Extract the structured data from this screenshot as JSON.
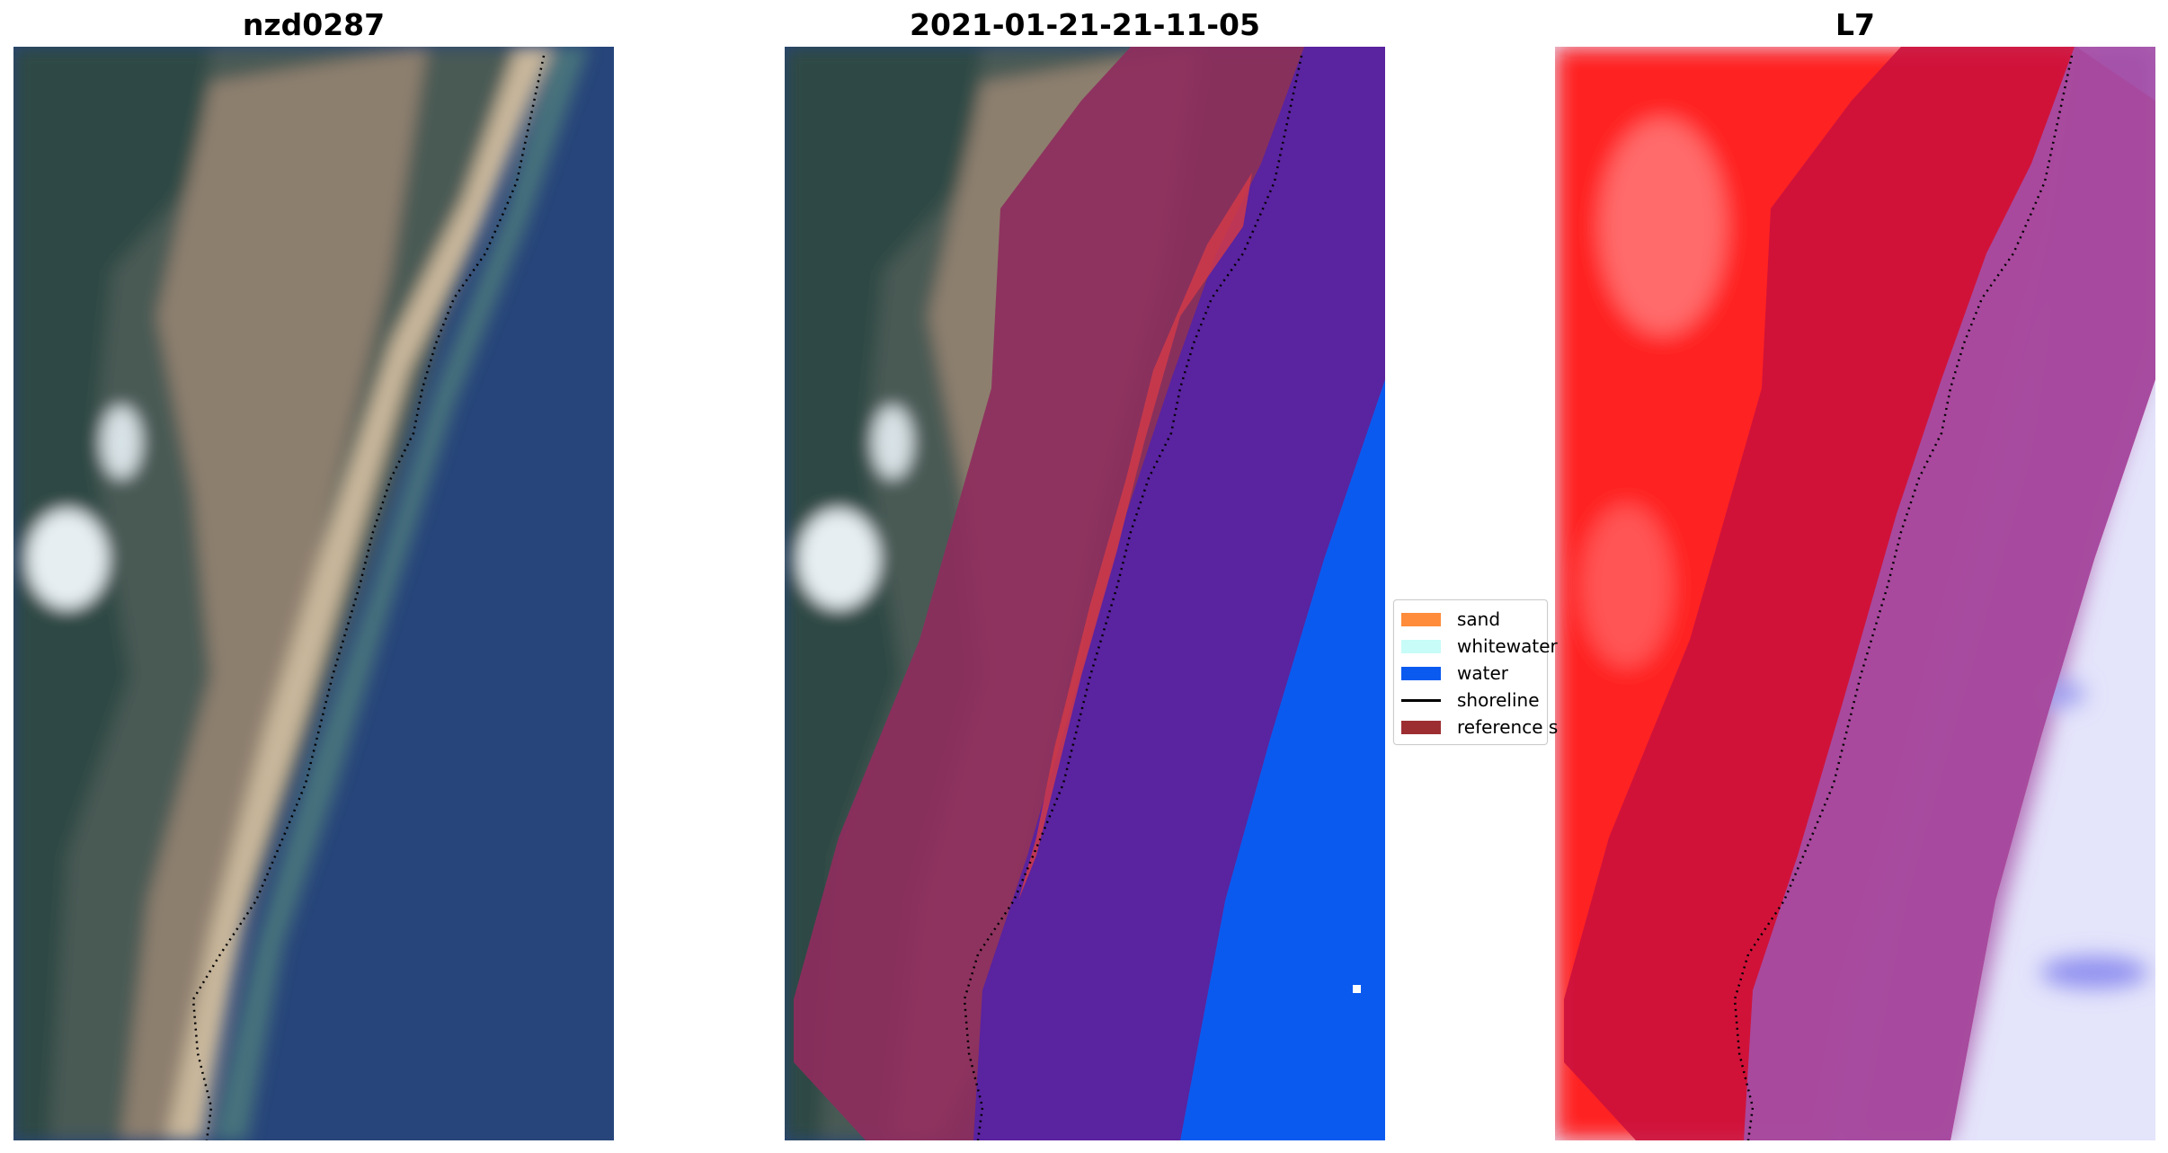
{
  "panels": [
    {
      "title": "nzd0287"
    },
    {
      "title": "2021-01-21-21-11-05"
    },
    {
      "title": "L7"
    }
  ],
  "legend": {
    "items": [
      {
        "label": "sand",
        "color": "#ff8c3a",
        "kind": "swatch"
      },
      {
        "label": "whitewater",
        "color": "#c8fcf8",
        "kind": "swatch"
      },
      {
        "label": "water",
        "color": "#0a5af0",
        "kind": "swatch"
      },
      {
        "label": "shoreline",
        "color": "#000000",
        "kind": "line"
      },
      {
        "label": "reference s",
        "color": "#9c2e32",
        "kind": "swatch"
      }
    ]
  },
  "colors": {
    "water_dark": "#27457a",
    "beach_sand": "#c9b79b",
    "land_green": "#3f5347",
    "water_class": "#0a5af0",
    "water_buffer_overlap": "#5a239f",
    "reference_buffer": "#9c2e5a",
    "index_red": "#ff1a1a",
    "index_buffer": "#c80a3a",
    "index_low": "#e8e8ff"
  }
}
